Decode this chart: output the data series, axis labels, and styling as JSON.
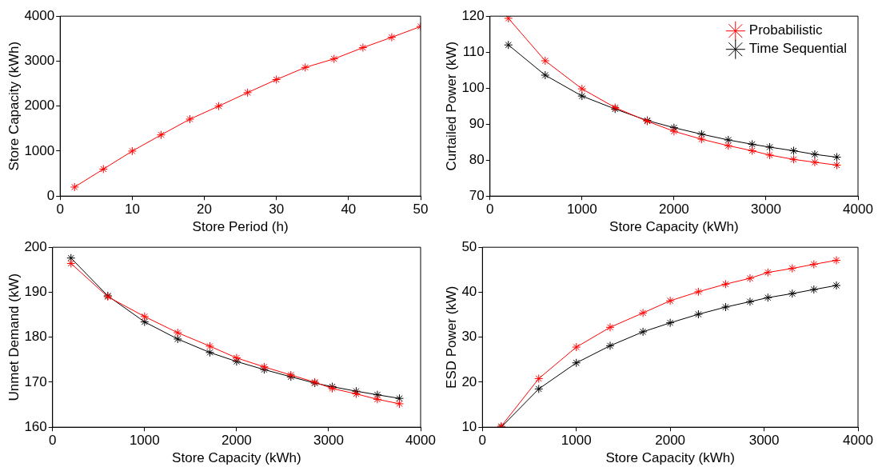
{
  "chart_data": [
    {
      "type": "line",
      "xlabel": "Store Period (h)",
      "ylabel": "Store Capacity (kWh)",
      "x": [
        2,
        6,
        10,
        14,
        18,
        22,
        26,
        30,
        34,
        38,
        42,
        46,
        50
      ],
      "xlim": [
        0,
        50
      ],
      "xticks": [
        0,
        10,
        20,
        30,
        40,
        50
      ],
      "ylim": [
        0,
        4000
      ],
      "yticks": [
        0,
        1000,
        2000,
        3000,
        4000
      ],
      "marker": "cross",
      "grid": false,
      "legend": false,
      "series": [
        {
          "color": "#ff0000",
          "values": [
            200,
            600,
            1000,
            1360,
            1710,
            2000,
            2300,
            2590,
            2860,
            3050,
            3300,
            3530,
            3770
          ]
        }
      ]
    },
    {
      "type": "line",
      "xlabel": "Store Capacity (kWh)",
      "ylabel": "Curtailed Power (kW)",
      "x": [
        200,
        600,
        1000,
        1360,
        1710,
        2000,
        2300,
        2590,
        2850,
        3040,
        3300,
        3530,
        3770
      ],
      "xlim": [
        0,
        4000
      ],
      "xticks": [
        0,
        1000,
        2000,
        3000,
        4000
      ],
      "ylim": [
        70,
        120
      ],
      "yticks": [
        70,
        80,
        90,
        100,
        110,
        120
      ],
      "marker": "cross",
      "grid": false,
      "legend": "top right",
      "series": [
        {
          "name": "Probabilistic",
          "color": "#ff0000",
          "values": [
            119.4,
            107.6,
            99.8,
            94.6,
            90.8,
            88.0,
            85.8,
            84.0,
            82.6,
            81.4,
            80.2,
            79.4,
            78.6
          ]
        },
        {
          "name": "Time Sequential",
          "color": "#000000",
          "values": [
            112.0,
            103.6,
            97.8,
            94.2,
            91.0,
            89.0,
            87.2,
            85.6,
            84.4,
            83.6,
            82.6,
            81.6,
            80.8
          ]
        }
      ]
    },
    {
      "type": "line",
      "xlabel": "Store Capacity (kWh)",
      "ylabel": "Unmet Demand (kW)",
      "x": [
        200,
        600,
        1000,
        1360,
        1710,
        2000,
        2300,
        2590,
        2850,
        3040,
        3300,
        3530,
        3770
      ],
      "xlim": [
        0,
        4000
      ],
      "xticks": [
        0,
        1000,
        2000,
        3000,
        4000
      ],
      "ylim": [
        160,
        200
      ],
      "yticks": [
        160,
        170,
        180,
        190,
        200
      ],
      "marker": "cross",
      "grid": false,
      "legend": false,
      "series": [
        {
          "color": "#ff0000",
          "values": [
            196.4,
            189.0,
            184.6,
            181.0,
            178.0,
            175.4,
            173.4,
            171.6,
            170.0,
            168.6,
            167.4,
            166.2,
            165.2
          ]
        },
        {
          "color": "#000000",
          "values": [
            197.6,
            189.2,
            183.4,
            179.6,
            176.6,
            174.6,
            172.8,
            171.2,
            169.8,
            169.0,
            168.0,
            167.2,
            166.4
          ]
        }
      ]
    },
    {
      "type": "line",
      "xlabel": "Store Capacity (kWh)",
      "ylabel": "ESD Power (kW)",
      "x": [
        200,
        600,
        1000,
        1360,
        1710,
        2000,
        2300,
        2590,
        2850,
        3040,
        3300,
        3530,
        3770
      ],
      "xlim": [
        0,
        4000
      ],
      "xticks": [
        0,
        1000,
        2000,
        3000,
        4000
      ],
      "ylim": [
        10,
        50
      ],
      "yticks": [
        10,
        20,
        30,
        40,
        50
      ],
      "marker": "cross",
      "grid": false,
      "legend": false,
      "series": [
        {
          "color": "#ff0000",
          "values": [
            10.2,
            20.8,
            27.8,
            32.2,
            35.4,
            38.1,
            40.1,
            41.8,
            43.1,
            44.4,
            45.3,
            46.2,
            47.1
          ]
        },
        {
          "color": "#000000",
          "values": [
            10.0,
            18.5,
            24.3,
            28.1,
            31.2,
            33.2,
            35.1,
            36.7,
            37.9,
            38.8,
            39.7,
            40.6,
            41.5
          ]
        }
      ]
    }
  ]
}
